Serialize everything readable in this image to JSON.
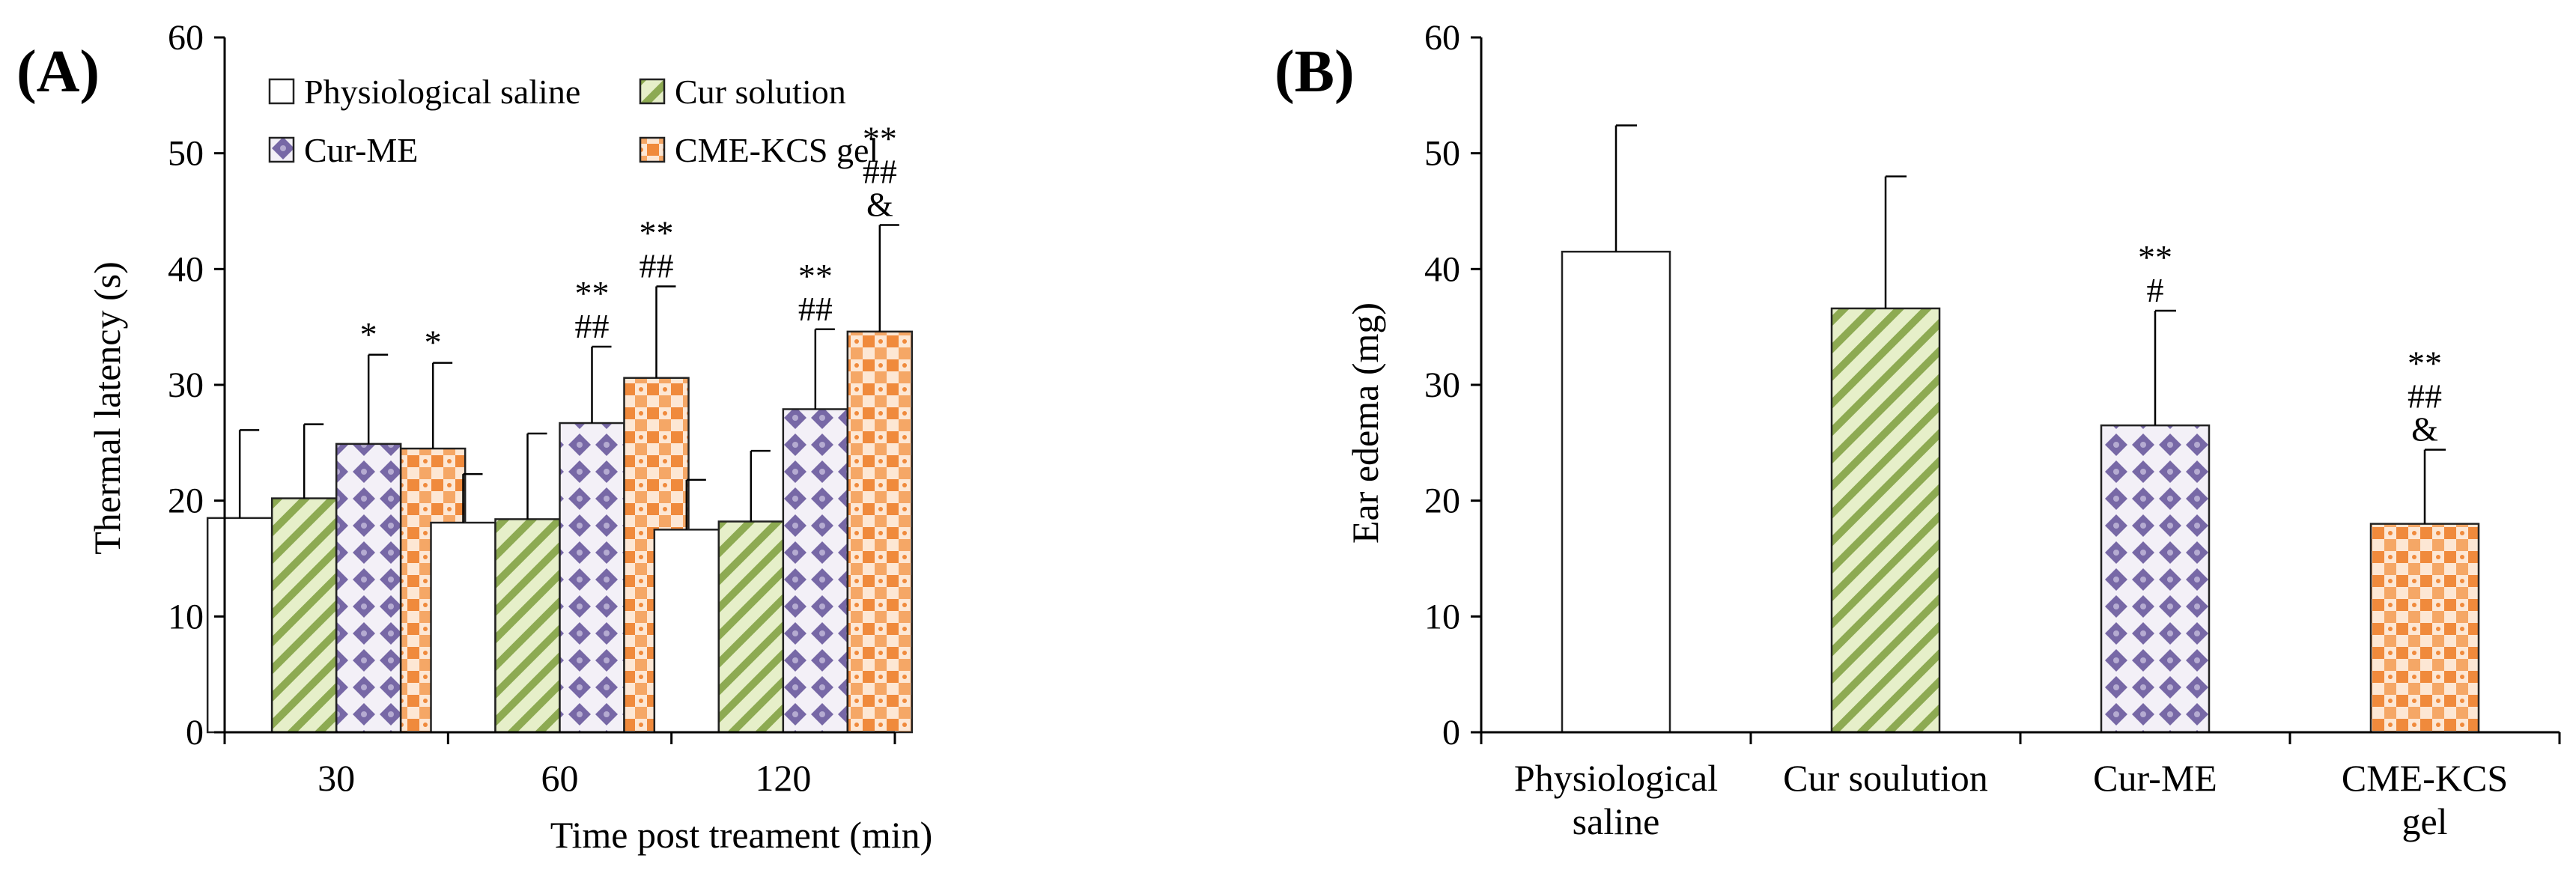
{
  "chart_data": [
    {
      "type": "bar",
      "panel_label": "(A)",
      "xlabel": "Time post treament (min)",
      "ylabel": "Thermal latency (s)",
      "ylim": [
        0,
        60
      ],
      "yticks": [
        "0",
        "10",
        "20",
        "30",
        "40",
        "50",
        "60"
      ],
      "categories": [
        "30",
        "60",
        "120"
      ],
      "legend": [
        "Physiological saline",
        "Cur solution",
        "Cur-ME",
        "CME-KCS gel"
      ],
      "series": [
        {
          "name": "Physiological saline",
          "values": [
            18.5,
            18.1,
            17.5
          ],
          "errors": [
            7.6,
            4.2,
            4.3
          ],
          "annotations": [
            [],
            [],
            []
          ]
        },
        {
          "name": "Cur solution",
          "values": [
            20.2,
            18.4,
            18.2
          ],
          "errors": [
            6.4,
            7.4,
            6.1
          ],
          "annotations": [
            [],
            [],
            []
          ]
        },
        {
          "name": "Cur-ME",
          "values": [
            24.9,
            26.7,
            27.9
          ],
          "errors": [
            7.7,
            6.6,
            6.9
          ],
          "annotations": [
            [
              "*"
            ],
            [
              "**",
              "##"
            ],
            [
              "**",
              "##"
            ]
          ]
        },
        {
          "name": "CME-KCS gel",
          "values": [
            24.5,
            30.6,
            34.6
          ],
          "errors": [
            7.4,
            7.9,
            9.2
          ],
          "annotations": [
            [
              "*"
            ],
            [
              "**",
              "##"
            ],
            [
              "**",
              "##",
              "&"
            ]
          ]
        }
      ]
    },
    {
      "type": "bar",
      "panel_label": "(B)",
      "xlabel": "",
      "ylabel": "Ear edema (mg)",
      "ylim": [
        0,
        60
      ],
      "yticks": [
        "0",
        "10",
        "20",
        "30",
        "40",
        "50",
        "60"
      ],
      "categories": [
        [
          "Physiological",
          "saline"
        ],
        [
          "Cur soulution"
        ],
        [
          "Cur-ME"
        ],
        [
          "CME-KCS",
          "gel"
        ]
      ],
      "values": [
        41.5,
        36.6,
        26.5,
        18.0
      ],
      "errors": [
        10.9,
        11.4,
        9.9,
        6.4
      ],
      "annotations": [
        [],
        [],
        [
          "**",
          "#"
        ],
        [
          "**",
          "##",
          "&"
        ]
      ]
    }
  ],
  "colors": {
    "axis": "#000000",
    "bar_edge": "#222222",
    "saline_fill": "#ffffff",
    "green_stripe": "#8daa52",
    "green_light": "#e6efc9",
    "purple": "#7768a6",
    "purple_light": "#ebe6f2",
    "orange": "#f08a3c",
    "orange_light": "#fde4d1"
  }
}
